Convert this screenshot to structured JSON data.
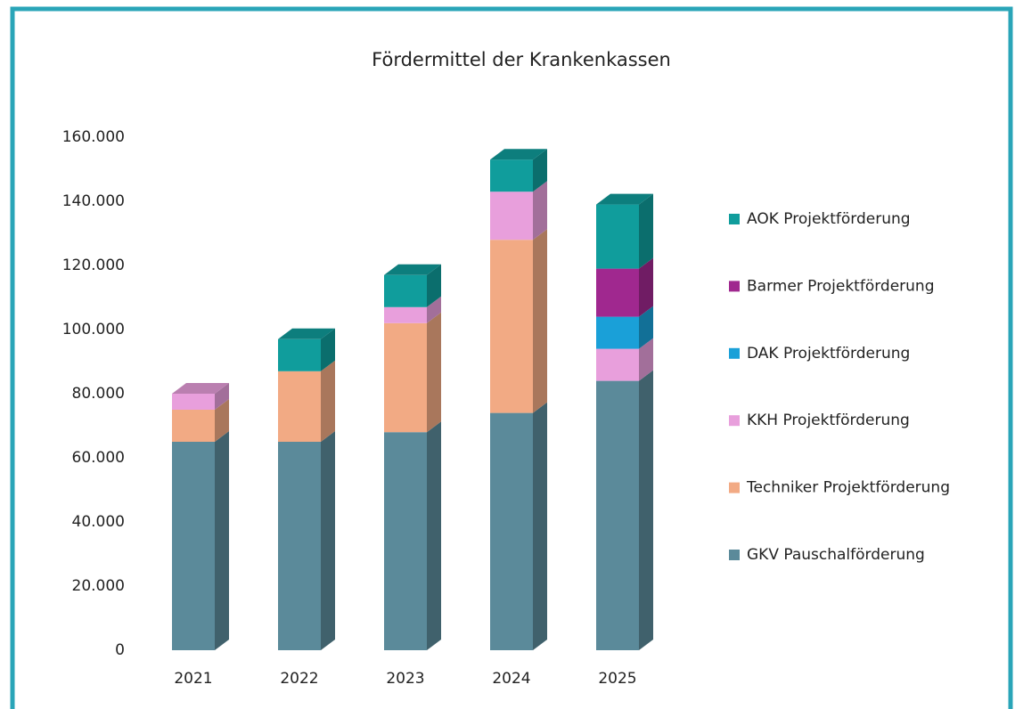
{
  "chart_data": {
    "type": "bar3d_stacked",
    "title": "Fördermittel der Krankenkassen",
    "categories": [
      "2021",
      "2022",
      "2023",
      "2024",
      "2025"
    ],
    "series": [
      {
        "name": "GKV Pauschalförderung",
        "color": "#5b8a9a",
        "values": [
          65000,
          65000,
          68000,
          74000,
          84000
        ]
      },
      {
        "name": "Techniker Projektförderung",
        "color": "#f2aa84",
        "values": [
          10000,
          22000,
          34000,
          54000,
          0
        ]
      },
      {
        "name": "KKH Projektförderung",
        "color": "#e89fdc",
        "values": [
          5000,
          0,
          5000,
          15000,
          10000
        ]
      },
      {
        "name": "DAK Projektförderung",
        "color": "#1aa0d8",
        "values": [
          0,
          0,
          0,
          0,
          10000
        ]
      },
      {
        "name": "Barmer Projektförderung",
        "color": "#a0288f",
        "values": [
          0,
          0,
          0,
          0,
          15000
        ]
      },
      {
        "name": "AOK Projektförderung",
        "color": "#109d9c",
        "values": [
          0,
          10000,
          10000,
          10000,
          20000
        ]
      }
    ],
    "ylim": [
      0,
      160000
    ],
    "yticks": [
      0,
      {
        "value": 20000,
        "label": "20.000"
      },
      {
        "value": 40000,
        "label": "40.000"
      },
      {
        "value": 60000,
        "label": "60.000"
      },
      {
        "value": 80000,
        "label": "80.000"
      },
      {
        "value": 100000,
        "label": "100.000"
      },
      {
        "value": 120000,
        "label": "120.000"
      },
      {
        "value": 140000,
        "label": "140.000"
      },
      {
        "value": 160000,
        "label": "160.000"
      }
    ],
    "legend": "right"
  }
}
